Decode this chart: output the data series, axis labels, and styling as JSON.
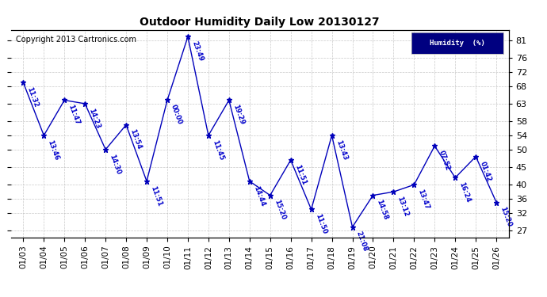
{
  "title": "Outdoor Humidity Daily Low 20130127",
  "copyright": "Copyright 2013 Cartronics.com",
  "legend_label": "Humidity  (%)",
  "x_labels": [
    "01/03",
    "01/04",
    "01/05",
    "01/06",
    "01/07",
    "01/08",
    "01/09",
    "01/10",
    "01/11",
    "01/12",
    "01/13",
    "01/14",
    "01/15",
    "01/16",
    "01/17",
    "01/18",
    "01/19",
    "01/20",
    "01/21",
    "01/22",
    "01/23",
    "01/24",
    "01/25",
    "01/26"
  ],
  "y_values": [
    69,
    54,
    64,
    63,
    50,
    57,
    41,
    64,
    82,
    54,
    64,
    41,
    37,
    47,
    33,
    54,
    28,
    37,
    38,
    40,
    51,
    42,
    48,
    35
  ],
  "time_labels": [
    "11:32",
    "13:46",
    "11:47",
    "14:23",
    "14:30",
    "13:54",
    "11:51",
    "00:00",
    "23:49",
    "11:45",
    "19:29",
    "14:44",
    "15:20",
    "11:51",
    "11:50",
    "13:43",
    "21:08",
    "14:58",
    "13:12",
    "13:47",
    "07:52",
    "16:24",
    "01:42",
    "15:20"
  ],
  "y_ticks": [
    27,
    32,
    36,
    40,
    45,
    50,
    54,
    58,
    63,
    68,
    72,
    76,
    81
  ],
  "ylim": [
    25,
    84
  ],
  "xlim": [
    -0.6,
    23.6
  ],
  "line_color": "#0000bb",
  "marker_color": "#0000bb",
  "background_color": "#ffffff",
  "plot_bg_color": "#ffffff",
  "grid_color": "#bbbbbb",
  "title_color": "#000000",
  "label_color": "#0000cc",
  "copyright_color": "#000000",
  "legend_bg": "#000080",
  "legend_fg": "#ffffff",
  "title_fontsize": 10,
  "copyright_fontsize": 7,
  "tick_fontsize": 8,
  "label_fontsize": 6
}
